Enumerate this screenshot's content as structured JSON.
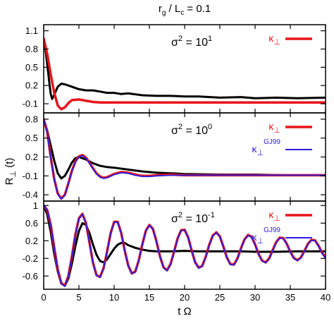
{
  "figure": {
    "title_main": "r",
    "title_sub_g": "g",
    "title_mid": " / L",
    "title_sub_c": "c",
    "title_tail": " = 0.1",
    "ylabel_main": "R",
    "ylabel_sub": "⊥",
    "ylabel_tail": " (t)",
    "xlabel": "t Ω"
  },
  "colors": {
    "kappa": "#e8141a",
    "gj99": "#2d1ee0",
    "sim": "#000000"
  },
  "chart_data": [
    {
      "type": "line",
      "panel": "top",
      "annotation_main": "σ",
      "annotation_sup": "2",
      "annotation_mid": " = 10",
      "annotation_exp": "1",
      "xlim": [
        0,
        40
      ],
      "ylim": [
        -0.25,
        1.2
      ],
      "yticks": [
        "1.1",
        "0.8",
        "0.5",
        "0.2",
        "-0.1"
      ],
      "ytick_values": [
        1.1,
        0.8,
        0.5,
        0.2,
        -0.1
      ],
      "xticks": [],
      "legend": [
        {
          "main": "κ",
          "sub": "⊥",
          "sup": "",
          "color_key": "kappa"
        }
      ],
      "series": [
        {
          "color_key": "sim",
          "x": [
            0,
            0.3,
            0.6,
            0.8,
            1.0,
            1.2,
            1.5,
            2.0,
            2.5,
            3.0,
            3.5,
            4.0,
            5.0,
            6.0,
            7.0,
            8.0,
            9.0,
            10.0,
            11.0,
            12.0,
            14.0,
            16.0,
            18.0,
            20.0,
            22.0,
            25.0,
            28.0,
            30.0,
            33.0,
            36.0,
            40.0
          ],
          "y": [
            0.97,
            0.75,
            0.45,
            0.25,
            0.06,
            -0.02,
            0.05,
            0.18,
            0.23,
            0.22,
            0.2,
            0.18,
            0.14,
            0.12,
            0.12,
            0.1,
            0.08,
            0.08,
            0.06,
            0.07,
            0.04,
            0.03,
            0.03,
            0.02,
            0.02,
            0.0,
            0.01,
            -0.01,
            0.0,
            -0.01,
            0.0
          ]
        },
        {
          "color_key": "kappa",
          "x": [
            0,
            0.5,
            1.0,
            1.5,
            2.0,
            2.5,
            3.0,
            3.5,
            4.0,
            5.0,
            6.0,
            7.0,
            8.0,
            10.0,
            12.0,
            15.0,
            20.0,
            25.0,
            30.0,
            35.0,
            40.0
          ],
          "y": [
            0.97,
            0.72,
            0.38,
            0.08,
            -0.13,
            -0.19,
            -0.16,
            -0.09,
            -0.04,
            -0.03,
            -0.05,
            -0.07,
            -0.08,
            -0.08,
            -0.08,
            -0.08,
            -0.08,
            -0.08,
            -0.08,
            -0.08,
            -0.08
          ]
        }
      ]
    },
    {
      "type": "line",
      "panel": "middle",
      "annotation_main": "σ",
      "annotation_sup": "2",
      "annotation_mid": " = 10",
      "annotation_exp": "0",
      "xlim": [
        0,
        40
      ],
      "ylim": [
        -0.5,
        0.9
      ],
      "yticks": [
        "0.8",
        "0.5",
        "0.2",
        "-0.1",
        "-0.4"
      ],
      "ytick_values": [
        0.8,
        0.5,
        0.2,
        -0.1,
        -0.4
      ],
      "xticks": [],
      "legend": [
        {
          "main": "κ",
          "sub": "⊥",
          "sup": "",
          "color_key": "kappa"
        },
        {
          "main": "κ",
          "sub": "⊥",
          "sup": "GJ99",
          "color_key": "gj99"
        }
      ],
      "series": [
        {
          "color_key": "sim",
          "x": [
            0,
            0.5,
            1.0,
            1.5,
            2.0,
            2.5,
            3.0,
            3.5,
            4.0,
            4.5,
            5.0,
            6.0,
            7.0,
            8.0,
            9.0,
            10.0,
            12.0,
            14.0,
            16.0,
            20.0,
            25.0,
            30.0,
            35.0,
            40.0
          ],
          "y": [
            0.8,
            0.62,
            0.38,
            0.14,
            -0.06,
            -0.14,
            -0.1,
            0.0,
            0.11,
            0.18,
            0.2,
            0.16,
            0.1,
            0.06,
            0.04,
            0.03,
            0.0,
            -0.03,
            -0.05,
            -0.07,
            -0.08,
            -0.08,
            -0.09,
            -0.09
          ]
        },
        {
          "color_key": "kappa",
          "x": [
            0,
            0.5,
            1.0,
            1.5,
            2.0,
            2.5,
            3.0,
            3.5,
            4.0,
            4.5,
            5.0,
            5.5,
            6.0,
            6.5,
            7.0,
            7.5,
            8.0,
            8.5,
            9.0,
            10.0,
            11.0,
            12.0,
            13.0,
            14.0,
            15.0,
            16.0,
            18.0,
            20.0,
            22.0,
            25.0,
            30.0,
            35.0,
            40.0
          ],
          "y": [
            0.8,
            0.6,
            0.2,
            -0.15,
            -0.38,
            -0.46,
            -0.4,
            -0.22,
            -0.02,
            0.13,
            0.21,
            0.23,
            0.19,
            0.11,
            0.02,
            -0.06,
            -0.11,
            -0.13,
            -0.12,
            -0.07,
            -0.04,
            -0.05,
            -0.08,
            -0.1,
            -0.1,
            -0.09,
            -0.08,
            -0.09,
            -0.09,
            -0.09,
            -0.09,
            -0.09,
            -0.09
          ]
        },
        {
          "color_key": "gj99",
          "x": [
            0,
            0.5,
            1.0,
            1.5,
            2.0,
            2.5,
            3.0,
            3.5,
            4.0,
            4.5,
            5.0,
            5.5,
            6.0,
            6.5,
            7.0,
            7.5,
            8.0,
            8.5,
            9.0,
            10.0,
            11.0,
            12.0,
            13.0,
            14.0,
            15.0,
            16.0,
            18.0,
            20.0,
            22.0,
            25.0,
            30.0,
            35.0,
            40.0
          ],
          "y": [
            0.8,
            0.59,
            0.19,
            -0.16,
            -0.39,
            -0.47,
            -0.41,
            -0.23,
            -0.03,
            0.12,
            0.2,
            0.22,
            0.18,
            0.1,
            0.01,
            -0.07,
            -0.12,
            -0.14,
            -0.13,
            -0.08,
            -0.05,
            -0.06,
            -0.09,
            -0.11,
            -0.11,
            -0.1,
            -0.09,
            -0.09,
            -0.09,
            -0.09,
            -0.09,
            -0.09,
            -0.09
          ]
        }
      ]
    },
    {
      "type": "line",
      "panel": "bottom",
      "annotation_main": "σ",
      "annotation_sup": "2",
      "annotation_mid": " = 10",
      "annotation_exp": "-1",
      "xlim": [
        0,
        40
      ],
      "ylim": [
        -0.9,
        1.1
      ],
      "yticks": [
        "1",
        "0.6",
        "0.2",
        "-0.2",
        "-0.6"
      ],
      "ytick_values": [
        1,
        0.6,
        0.2,
        -0.2,
        -0.6
      ],
      "xticks": [
        "0",
        "5",
        "10",
        "15",
        "20",
        "25",
        "30",
        "35",
        "40"
      ],
      "xtick_values": [
        0,
        5,
        10,
        15,
        20,
        25,
        30,
        35,
        40
      ],
      "legend": [
        {
          "main": "κ",
          "sub": "⊥",
          "sup": "",
          "color_key": "kappa"
        },
        {
          "main": "κ",
          "sub": "⊥",
          "sup": "GJ99",
          "color_key": "gj99"
        }
      ],
      "series": [
        {
          "color_key": "sim",
          "x": [
            0,
            0.5,
            1.0,
            1.5,
            2.0,
            2.5,
            3.0,
            3.5,
            4.0,
            4.5,
            5.0,
            5.5,
            6.0,
            6.5,
            7.0,
            7.5,
            8.0,
            8.5,
            9.0,
            9.5,
            10.0,
            10.5,
            11.0,
            11.5,
            12.0,
            13.0,
            14.0,
            15.0,
            16.0,
            18.0,
            20.0,
            22.0,
            25.0,
            28.0,
            30.0,
            33.0,
            36.0,
            40.0
          ],
          "y": [
            1.0,
            0.8,
            0.4,
            -0.1,
            -0.5,
            -0.77,
            -0.82,
            -0.66,
            -0.32,
            0.08,
            0.42,
            0.6,
            0.56,
            0.37,
            0.11,
            -0.12,
            -0.26,
            -0.29,
            -0.22,
            -0.1,
            0.02,
            0.11,
            0.15,
            0.15,
            0.1,
            0.04,
            0.0,
            -0.03,
            -0.04,
            -0.04,
            -0.03,
            -0.04,
            -0.04,
            -0.04,
            -0.05,
            -0.05,
            -0.04,
            -0.04
          ]
        },
        {
          "color_key": "kappa",
          "x": [
            0,
            0.5,
            1.0,
            1.5,
            2.0,
            2.5,
            3.0,
            3.5,
            4.0,
            4.5,
            5.0,
            5.5,
            6.0,
            6.5,
            7.0,
            7.5,
            8.0,
            8.5,
            9.0,
            9.5,
            10.0,
            10.5,
            11.0,
            11.5,
            12.0,
            12.5,
            13.0,
            13.5,
            14.0,
            14.5,
            15.0,
            15.5,
            16.0,
            16.5,
            17.0,
            17.5,
            18.0,
            18.5,
            19.0,
            19.5,
            20.0,
            20.5,
            21.0,
            21.5,
            22.0,
            22.5,
            23.0,
            23.5,
            24.0,
            24.5,
            25.0,
            25.5,
            26.0,
            26.5,
            27.0,
            27.5,
            28.0,
            28.5,
            29.0,
            29.5,
            30.0,
            30.5,
            31.0,
            31.5,
            32.0,
            32.5,
            33.0,
            33.5,
            34.0,
            34.5,
            35.0,
            35.5,
            36.0,
            36.5,
            37.0,
            37.5,
            38.0,
            38.5,
            39.0,
            39.5,
            40.0
          ],
          "y": [
            1.0,
            0.9,
            0.56,
            0.04,
            -0.45,
            -0.76,
            -0.82,
            -0.6,
            -0.16,
            0.34,
            0.71,
            0.81,
            0.6,
            0.16,
            -0.3,
            -0.58,
            -0.62,
            -0.42,
            -0.04,
            0.37,
            0.63,
            0.63,
            0.38,
            -0.02,
            -0.36,
            -0.54,
            -0.5,
            -0.24,
            0.12,
            0.43,
            0.56,
            0.47,
            0.19,
            -0.15,
            -0.4,
            -0.47,
            -0.33,
            -0.05,
            0.25,
            0.44,
            0.45,
            0.28,
            -0.02,
            -0.29,
            -0.41,
            -0.37,
            -0.16,
            0.11,
            0.32,
            0.39,
            0.3,
            0.07,
            -0.18,
            -0.33,
            -0.34,
            -0.2,
            0.03,
            0.23,
            0.33,
            0.29,
            0.12,
            -0.1,
            -0.25,
            -0.29,
            -0.2,
            -0.01,
            0.17,
            0.27,
            0.26,
            0.13,
            -0.05,
            -0.19,
            -0.24,
            -0.18,
            -0.03,
            0.13,
            0.22,
            0.21,
            0.09,
            -0.07,
            -0.18
          ]
        },
        {
          "color_key": "gj99",
          "x": [
            0,
            0.5,
            1.0,
            1.5,
            2.0,
            2.5,
            3.0,
            3.5,
            4.0,
            4.5,
            5.0,
            5.5,
            6.0,
            6.5,
            7.0,
            7.5,
            8.0,
            8.5,
            9.0,
            9.5,
            10.0,
            10.5,
            11.0,
            11.5,
            12.0,
            12.5,
            13.0,
            13.5,
            14.0,
            14.5,
            15.0,
            15.5,
            16.0,
            16.5,
            17.0,
            17.5,
            18.0,
            18.5,
            19.0,
            19.5,
            20.0,
            20.5,
            21.0,
            21.5,
            22.0,
            22.5,
            23.0,
            23.5,
            24.0,
            24.5,
            25.0,
            25.5,
            26.0,
            26.5,
            27.0,
            27.5,
            28.0,
            28.5,
            29.0,
            29.5,
            30.0,
            30.5,
            31.0,
            31.5,
            32.0,
            32.5,
            33.0,
            33.5,
            34.0,
            34.5,
            35.0,
            35.5,
            36.0,
            36.5,
            37.0,
            37.5,
            38.0,
            38.5,
            39.0,
            39.5,
            40.0
          ],
          "y": [
            1.0,
            0.9,
            0.55,
            0.03,
            -0.46,
            -0.77,
            -0.83,
            -0.61,
            -0.17,
            0.33,
            0.7,
            0.8,
            0.59,
            0.15,
            -0.31,
            -0.59,
            -0.63,
            -0.43,
            -0.05,
            0.36,
            0.62,
            0.62,
            0.37,
            -0.03,
            -0.37,
            -0.55,
            -0.51,
            -0.25,
            0.11,
            0.42,
            0.55,
            0.46,
            0.18,
            -0.16,
            -0.41,
            -0.48,
            -0.34,
            -0.06,
            0.24,
            0.43,
            0.44,
            0.27,
            -0.03,
            -0.3,
            -0.42,
            -0.38,
            -0.17,
            0.1,
            0.31,
            0.38,
            0.29,
            0.06,
            -0.19,
            -0.34,
            -0.35,
            -0.21,
            0.02,
            0.22,
            0.32,
            0.28,
            0.11,
            -0.11,
            -0.26,
            -0.3,
            -0.21,
            -0.02,
            0.16,
            0.26,
            0.25,
            0.12,
            -0.06,
            -0.2,
            -0.25,
            -0.19,
            -0.04,
            0.12,
            0.21,
            0.2,
            0.08,
            -0.08,
            -0.19
          ]
        }
      ]
    }
  ]
}
